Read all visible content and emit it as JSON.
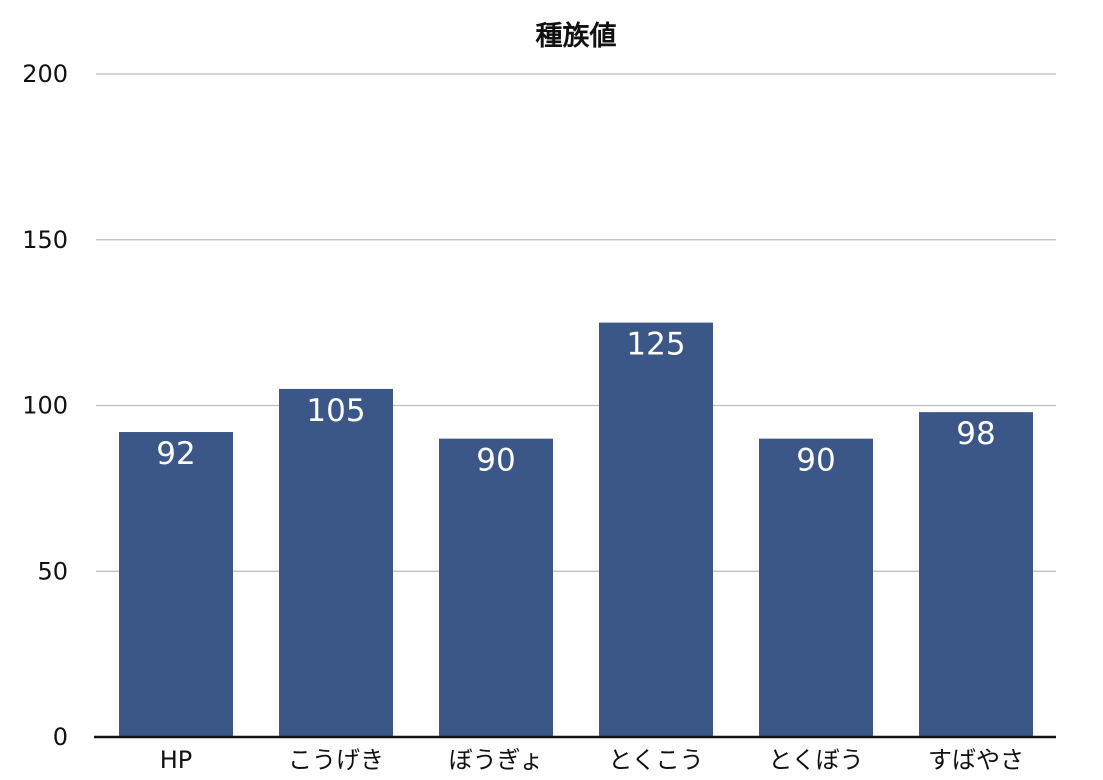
{
  "chart_data": {
    "type": "bar",
    "title": "種族値",
    "categories": [
      "HP",
      "こうげき",
      "ぼうぎょ",
      "とくこう",
      "とくぼう",
      "すばやさ"
    ],
    "values": [
      92,
      105,
      90,
      125,
      90,
      98
    ],
    "xlabel": "",
    "ylabel": "",
    "ylim": [
      0,
      200
    ],
    "yticks": [
      0,
      50,
      100,
      150,
      200
    ],
    "grid": true,
    "legend": "none",
    "bar_color": "#3a5787",
    "data_label_color": "#ffffff"
  }
}
